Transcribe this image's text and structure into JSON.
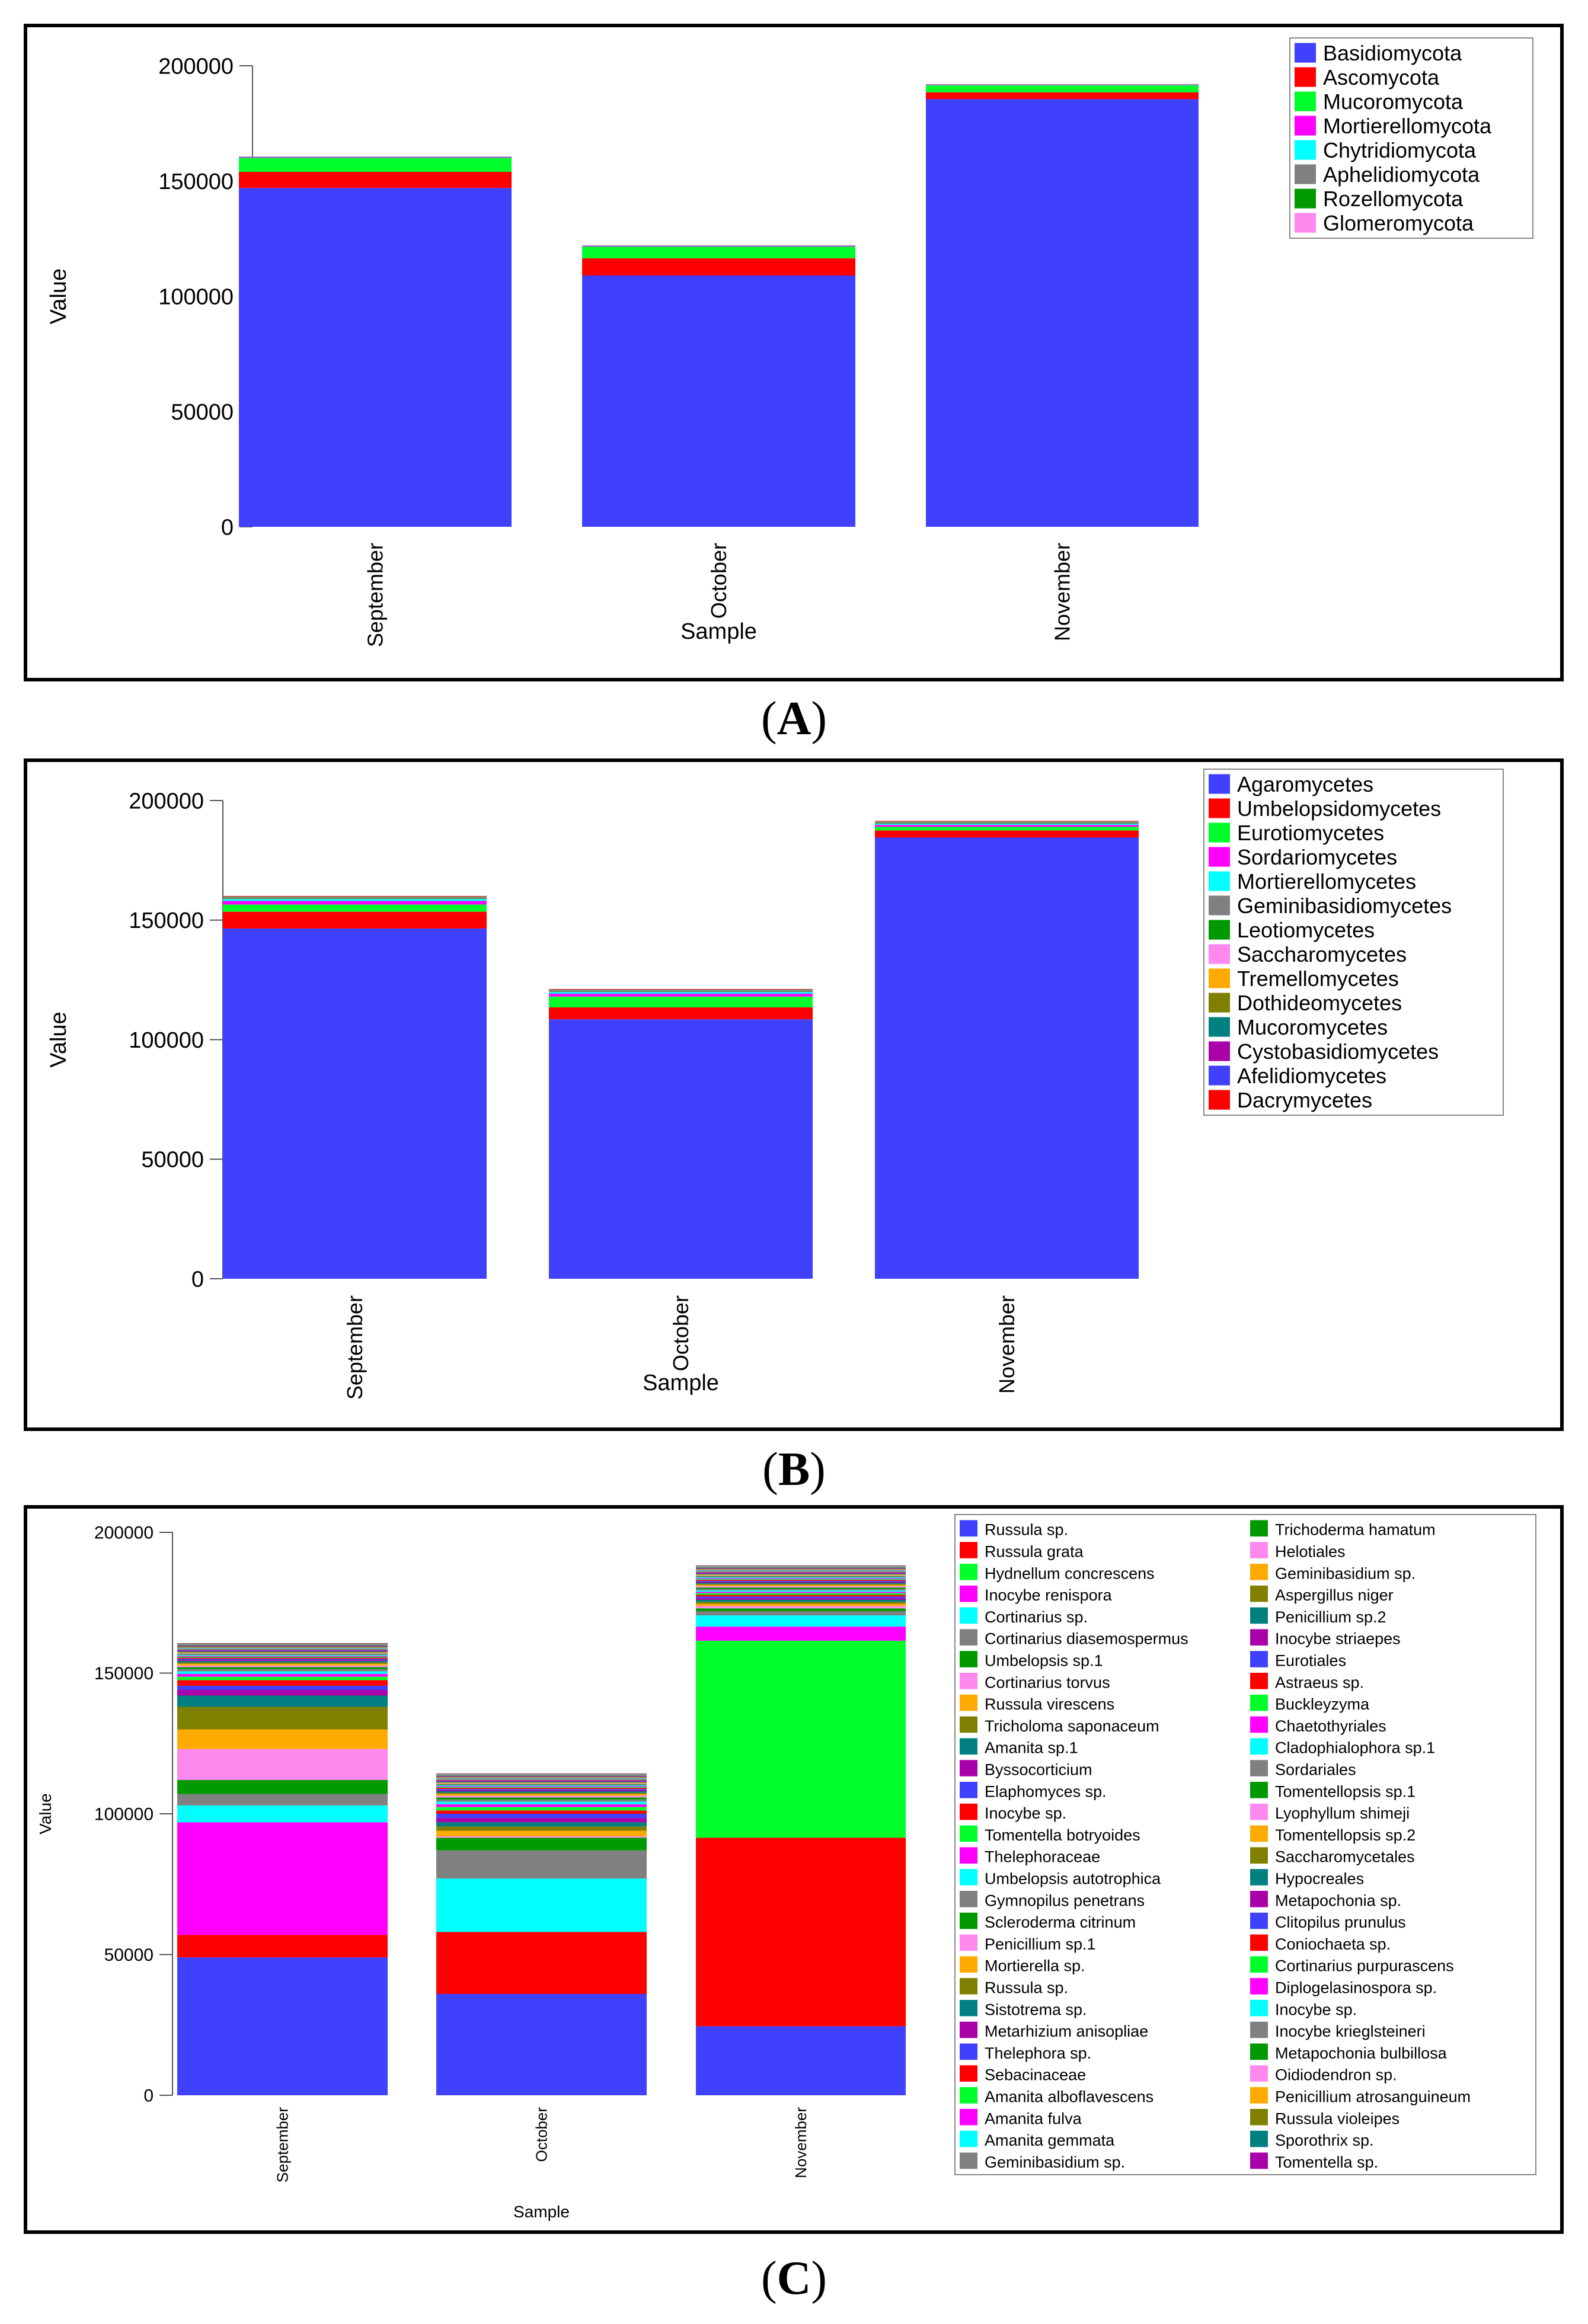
{
  "panel_labels": {
    "a": "A",
    "b": "B",
    "c": "C"
  },
  "chart_data": [
    {
      "id": "A",
      "type": "stacked-bar",
      "xlabel": "Sample",
      "ylabel": "Value",
      "ylim": [
        0,
        200000
      ],
      "yticks": [
        0,
        50000,
        100000,
        150000,
        200000
      ],
      "categories": [
        "September",
        "October",
        "November"
      ],
      "legend_position": "top-right",
      "series": [
        {
          "name": "Basidiomycota",
          "color": "#4040ff",
          "values": [
            147000,
            109000,
            185500
          ]
        },
        {
          "name": "Ascomycota",
          "color": "#ff0000",
          "values": [
            7000,
            7500,
            3000
          ]
        },
        {
          "name": "Mucoromycota",
          "color": "#00ff2a",
          "values": [
            6000,
            5000,
            3000
          ]
        },
        {
          "name": "Mortierellomycota",
          "color": "#ff00ff",
          "values": [
            300,
            300,
            200
          ]
        },
        {
          "name": "Chytridiomycota",
          "color": "#00ffff",
          "values": [
            100,
            100,
            100
          ]
        },
        {
          "name": "Aphelidiomycota",
          "color": "#808080",
          "values": [
            100,
            100,
            100
          ]
        },
        {
          "name": "Rozellomycota",
          "color": "#009900",
          "values": [
            100,
            100,
            100
          ]
        },
        {
          "name": "Glomeromycota",
          "color": "#ff88ee",
          "values": [
            50,
            50,
            50
          ]
        }
      ]
    },
    {
      "id": "B",
      "type": "stacked-bar",
      "xlabel": "Sample",
      "ylabel": "Value",
      "ylim": [
        0,
        200000
      ],
      "yticks": [
        0,
        50000,
        100000,
        150000,
        200000
      ],
      "categories": [
        "September",
        "October",
        "November"
      ],
      "legend_position": "top-right",
      "series": [
        {
          "name": "Agaromycetes",
          "color": "#4040ff",
          "values": [
            146500,
            108500,
            184500
          ]
        },
        {
          "name": "Umbelopsidomycetes",
          "color": "#ff0000",
          "values": [
            7000,
            5000,
            3000
          ]
        },
        {
          "name": "Eurotiomycetes",
          "color": "#00ff2a",
          "values": [
            3000,
            4500,
            1500
          ]
        },
        {
          "name": "Sordariomycetes",
          "color": "#ff00ff",
          "values": [
            1500,
            1200,
            800
          ]
        },
        {
          "name": "Mortierellomycetes",
          "color": "#00ffff",
          "values": [
            800,
            700,
            500
          ]
        },
        {
          "name": "Geminibasidiomycetes",
          "color": "#808080",
          "values": [
            400,
            400,
            300
          ]
        },
        {
          "name": "Leotiomycetes",
          "color": "#009900",
          "values": [
            300,
            300,
            300
          ]
        },
        {
          "name": "Saccharomycetes",
          "color": "#ff88ee",
          "values": [
            200,
            200,
            200
          ]
        },
        {
          "name": "Tremellomycetes",
          "color": "#ffaa00",
          "values": [
            100,
            100,
            100
          ]
        },
        {
          "name": "Dothideomycetes",
          "color": "#808000",
          "values": [
            100,
            100,
            100
          ]
        },
        {
          "name": "Mucoromycetes",
          "color": "#008080",
          "values": [
            50,
            50,
            50
          ]
        },
        {
          "name": "Cystobasidiomycetes",
          "color": "#aa00aa",
          "values": [
            50,
            50,
            50
          ]
        },
        {
          "name": "Afelidiomycetes",
          "color": "#4040ff",
          "values": [
            30,
            30,
            30
          ]
        },
        {
          "name": "Dacrymycetes",
          "color": "#ff0000",
          "values": [
            30,
            30,
            30
          ]
        }
      ]
    },
    {
      "id": "C",
      "type": "stacked-bar",
      "xlabel": "Sample",
      "ylabel": "Value",
      "ylim": [
        0,
        200000
      ],
      "yticks": [
        0,
        50000,
        100000,
        150000,
        200000
      ],
      "categories": [
        "September",
        "October",
        "November"
      ],
      "legend_position": "right",
      "series": [
        {
          "name": "Russula sp.",
          "color": "#4040ff",
          "values": [
            49000,
            36000,
            24500
          ]
        },
        {
          "name": "Russula grata",
          "color": "#ff0000",
          "values": [
            8000,
            22000,
            67000
          ]
        },
        {
          "name": "Hydnellum concrescens",
          "color": "#00ff2a",
          "values": [
            0,
            0,
            70000
          ]
        },
        {
          "name": "Inocybe renispora",
          "color": "#ff00ff",
          "values": [
            40000,
            0,
            5000
          ]
        },
        {
          "name": "Cortinarius sp.",
          "color": "#00ffff",
          "values": [
            6000,
            19000,
            4000
          ]
        },
        {
          "name": "Cortinarius diasemospermus",
          "color": "#808080",
          "values": [
            4000,
            10000,
            1500
          ]
        },
        {
          "name": "Umbelopsis sp.1",
          "color": "#009900",
          "values": [
            5000,
            4500,
            1000
          ]
        },
        {
          "name": "Cortinarius torvus",
          "color": "#ff88ee",
          "values": [
            11000,
            500,
            800
          ]
        },
        {
          "name": "Russula virescens",
          "color": "#ffaa00",
          "values": [
            7000,
            2000,
            800
          ]
        },
        {
          "name": "Tricholoma saponaceum",
          "color": "#808000",
          "values": [
            8000,
            1500,
            700
          ]
        },
        {
          "name": "Amanita sp.1",
          "color": "#008080",
          "values": [
            4000,
            1500,
            700
          ]
        },
        {
          "name": "Byssocorticium",
          "color": "#aa00aa",
          "values": [
            2000,
            1500,
            600
          ]
        },
        {
          "name": "Elaphomyces sp.",
          "color": "#4040ff",
          "values": [
            1500,
            1500,
            600
          ]
        },
        {
          "name": "Inocybe sp.",
          "color": "#ff0000",
          "values": [
            2000,
            1200,
            600
          ]
        },
        {
          "name": "Tomentella botryoides",
          "color": "#00ff2a",
          "values": [
            1200,
            1200,
            600
          ]
        },
        {
          "name": "Thelephoraceae",
          "color": "#ff00ff",
          "values": [
            1000,
            1000,
            500
          ]
        },
        {
          "name": "Umbelopsis autotrophica",
          "color": "#00ffff",
          "values": [
            900,
            900,
            500
          ]
        },
        {
          "name": "Gymnopilus penetrans",
          "color": "#808080",
          "values": [
            800,
            800,
            500
          ]
        },
        {
          "name": "Scleroderma citrinum",
          "color": "#009900",
          "values": [
            700,
            700,
            500
          ]
        },
        {
          "name": "Penicillium sp.1",
          "color": "#ff88ee",
          "values": [
            600,
            600,
            500
          ]
        },
        {
          "name": "Mortierella sp.",
          "color": "#ffaa00",
          "values": [
            600,
            600,
            400
          ]
        },
        {
          "name": "Russula sp.",
          "color": "#808000",
          "values": [
            500,
            500,
            400
          ]
        },
        {
          "name": "Sistotrema sp.",
          "color": "#008080",
          "values": [
            500,
            500,
            400
          ]
        },
        {
          "name": "Metarhizium anisopliae",
          "color": "#aa00aa",
          "values": [
            400,
            400,
            400
          ]
        },
        {
          "name": "Thelephora sp.",
          "color": "#4040ff",
          "values": [
            400,
            400,
            300
          ]
        },
        {
          "name": "Sebacinaceae",
          "color": "#ff0000",
          "values": [
            400,
            400,
            300
          ]
        },
        {
          "name": "Amanita alboflavescens",
          "color": "#00ff2a",
          "values": [
            300,
            300,
            300
          ]
        },
        {
          "name": "Amanita fulva",
          "color": "#ff00ff",
          "values": [
            300,
            300,
            300
          ]
        },
        {
          "name": "Amanita gemmata",
          "color": "#00ffff",
          "values": [
            300,
            300,
            300
          ]
        },
        {
          "name": "Geminibasidium sp.",
          "color": "#808080",
          "values": [
            300,
            300,
            300
          ]
        },
        {
          "name": "Trichoderma hamatum",
          "color": "#009900",
          "values": [
            200,
            200,
            200
          ]
        },
        {
          "name": "Helotiales",
          "color": "#ff88ee",
          "values": [
            200,
            200,
            200
          ]
        },
        {
          "name": "Geminibasidium sp.",
          "color": "#ffaa00",
          "values": [
            200,
            200,
            200
          ]
        },
        {
          "name": "Aspergillus niger",
          "color": "#808000",
          "values": [
            200,
            200,
            200
          ]
        },
        {
          "name": "Penicillium sp.2",
          "color": "#008080",
          "values": [
            200,
            200,
            200
          ]
        },
        {
          "name": "Inocybe striaepes",
          "color": "#aa00aa",
          "values": [
            200,
            200,
            200
          ]
        },
        {
          "name": "Eurotiales",
          "color": "#4040ff",
          "values": [
            200,
            200,
            200
          ]
        },
        {
          "name": "Astraeus sp.",
          "color": "#ff0000",
          "values": [
            200,
            200,
            200
          ]
        },
        {
          "name": "Buckleyzyma",
          "color": "#00ff2a",
          "values": [
            150,
            150,
            150
          ]
        },
        {
          "name": "Chaetothyriales",
          "color": "#ff00ff",
          "values": [
            150,
            150,
            150
          ]
        },
        {
          "name": "Cladophialophora sp.1",
          "color": "#00ffff",
          "values": [
            150,
            150,
            150
          ]
        },
        {
          "name": "Sordariales",
          "color": "#808080",
          "values": [
            150,
            150,
            150
          ]
        },
        {
          "name": "Tomentellopsis sp.1",
          "color": "#009900",
          "values": [
            150,
            150,
            150
          ]
        },
        {
          "name": "Lyophyllum shimeji",
          "color": "#ff88ee",
          "values": [
            150,
            150,
            150
          ]
        },
        {
          "name": "Tomentellopsis sp.2",
          "color": "#ffaa00",
          "values": [
            100,
            100,
            100
          ]
        },
        {
          "name": "Saccharomycetales",
          "color": "#808000",
          "values": [
            100,
            100,
            100
          ]
        },
        {
          "name": "Hypocreales",
          "color": "#008080",
          "values": [
            100,
            100,
            100
          ]
        },
        {
          "name": "Metapochonia sp.",
          "color": "#aa00aa",
          "values": [
            100,
            100,
            100
          ]
        },
        {
          "name": "Clitopilus prunulus",
          "color": "#4040ff",
          "values": [
            100,
            100,
            100
          ]
        },
        {
          "name": "Coniochaeta sp.",
          "color": "#ff0000",
          "values": [
            100,
            100,
            100
          ]
        },
        {
          "name": "Cortinarius purpurascens",
          "color": "#00ff2a",
          "values": [
            100,
            100,
            100
          ]
        },
        {
          "name": "Diplogelasinospora sp.",
          "color": "#ff00ff",
          "values": [
            100,
            100,
            100
          ]
        },
        {
          "name": "Inocybe sp.",
          "color": "#00ffff",
          "values": [
            80,
            80,
            80
          ]
        },
        {
          "name": "Inocybe krieglsteineri",
          "color": "#808080",
          "values": [
            80,
            80,
            80
          ]
        },
        {
          "name": "Metapochonia bulbillosa",
          "color": "#009900",
          "values": [
            80,
            80,
            80
          ]
        },
        {
          "name": "Oidiodendron sp.",
          "color": "#ff88ee",
          "values": [
            80,
            80,
            80
          ]
        },
        {
          "name": "Penicillium atrosanguineum",
          "color": "#ffaa00",
          "values": [
            80,
            80,
            80
          ]
        },
        {
          "name": "Russula violeipes",
          "color": "#808000",
          "values": [
            80,
            80,
            80
          ]
        },
        {
          "name": "Sporothrix sp.",
          "color": "#008080",
          "values": [
            80,
            80,
            80
          ]
        },
        {
          "name": "Tomentella sp.",
          "color": "#aa00aa",
          "values": [
            80,
            80,
            80
          ]
        }
      ]
    }
  ]
}
